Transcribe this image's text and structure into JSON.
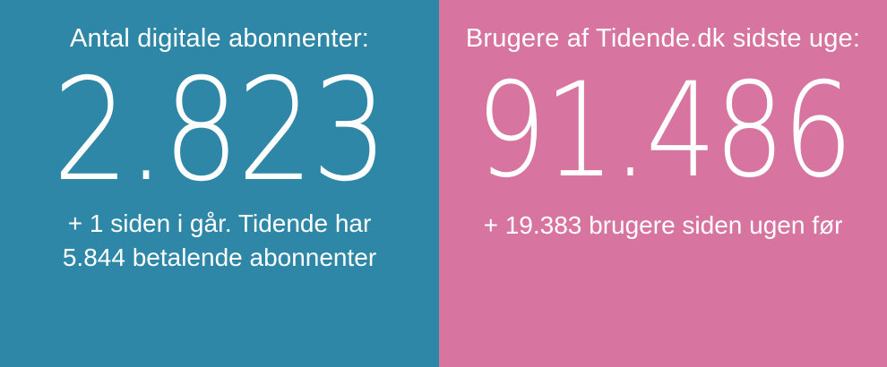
{
  "panels": {
    "left": {
      "title": "Antal digitale abonnenter:",
      "value": "2.823",
      "subtitle_line1": "+ 1 siden i går. Tidende har",
      "subtitle_line2": "5.844 betalende abonnenter",
      "background_color": "#2E87A6",
      "text_color": "#FFFFFF"
    },
    "right": {
      "title": "Brugere af Tidende.dk sidste uge:",
      "value": "91.486",
      "subtitle_line1": "+ 19.383 brugere siden ugen før",
      "background_color": "#D7749F",
      "text_color": "#FFFFFF"
    }
  }
}
